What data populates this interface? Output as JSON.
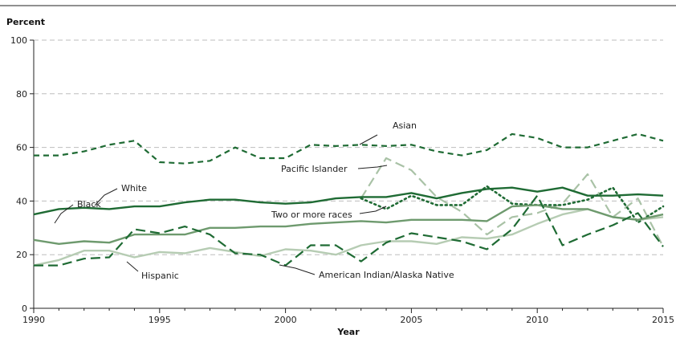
{
  "chart_data": {
    "type": "line",
    "ylabel": "Percent",
    "xlabel": "Year",
    "xlim": [
      1990,
      2015
    ],
    "ylim": [
      0,
      100
    ],
    "x_ticks": [
      1990,
      1995,
      2000,
      2005,
      2010,
      2015
    ],
    "y_ticks": [
      0,
      20,
      40,
      60,
      80,
      100
    ],
    "grid": "horizontal dashed",
    "x": [
      1990,
      1991,
      1992,
      1993,
      1994,
      1995,
      1996,
      1997,
      1998,
      1999,
      2000,
      2001,
      2002,
      2003,
      2004,
      2005,
      2006,
      2007,
      2008,
      2009,
      2010,
      2011,
      2012,
      2013,
      2014,
      2015
    ],
    "series": [
      {
        "name": "Asian",
        "color": "#1f6b34",
        "style": "dashed",
        "width": 2.2,
        "values": [
          57,
          57,
          58.5,
          61,
          62.5,
          54.5,
          54,
          55,
          60,
          56,
          56,
          61,
          60.5,
          61,
          60.5,
          61,
          58.5,
          57,
          59,
          65,
          63.5,
          60,
          60,
          62.5,
          65,
          62.5
        ]
      },
      {
        "name": "White",
        "color": "#1f6b34",
        "style": "solid",
        "width": 2.4,
        "values": [
          35,
          37,
          37.5,
          37,
          38,
          38,
          39.5,
          40.5,
          40.5,
          39.5,
          39,
          39.5,
          41,
          41.5,
          41.5,
          43,
          41,
          43,
          44.5,
          45,
          43.5,
          45,
          42,
          42,
          42.5,
          42
        ]
      },
      {
        "name": "Black",
        "color": "#6e9a6e",
        "style": "solid",
        "width": 2.4,
        "values": [
          25.5,
          24,
          25,
          24.5,
          27.5,
          27.5,
          27.5,
          30,
          30,
          30.5,
          30.5,
          31.5,
          32,
          32.5,
          32,
          33,
          33,
          33,
          32.5,
          38,
          38.5,
          37,
          37,
          34,
          33,
          35
        ]
      },
      {
        "name": "Hispanic",
        "color": "#b6ccb3",
        "style": "solid",
        "width": 2.4,
        "values": [
          16,
          18,
          21.5,
          21.5,
          19,
          21,
          20.5,
          22.5,
          21,
          19.5,
          22,
          21.5,
          20,
          23.5,
          25,
          25,
          24,
          26.5,
          26,
          27.5,
          31.5,
          35,
          37,
          34,
          33,
          34
        ]
      },
      {
        "name": "American Indian/Alaska Native",
        "color": "#1f6b34",
        "style": "longdash",
        "width": 2.2,
        "values": [
          16,
          16,
          18.5,
          19,
          29.5,
          28,
          30.5,
          27.5,
          20.5,
          20,
          16,
          23.5,
          23.5,
          17.5,
          24.5,
          28,
          26.5,
          25,
          22,
          29.5,
          42,
          23.5,
          27.5,
          31,
          35.5,
          23
        ]
      },
      {
        "name": "Pacific Islander",
        "color": "#a9c2a6",
        "style": "longdash",
        "width": 2.2,
        "values": [
          null,
          null,
          null,
          null,
          null,
          null,
          null,
          null,
          null,
          null,
          null,
          null,
          null,
          41,
          56,
          51.5,
          41.5,
          36,
          27.5,
          34,
          35.5,
          39,
          50,
          34,
          41,
          23
        ]
      },
      {
        "name": "Two or more races",
        "color": "#1f6b34",
        "style": "dotted",
        "width": 2.6,
        "values": [
          null,
          null,
          null,
          null,
          null,
          null,
          null,
          null,
          null,
          null,
          null,
          null,
          null,
          41,
          37,
          42,
          38.5,
          38.5,
          45.5,
          39,
          38.5,
          38.5,
          40.5,
          45,
          32,
          38
        ]
      }
    ]
  }
}
